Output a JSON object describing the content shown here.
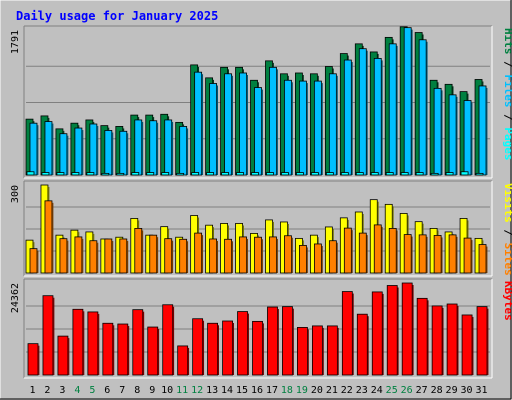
{
  "title": "Daily usage for January 2025",
  "colors": {
    "background": "#c0c0c0",
    "panel": "#c0c0c0",
    "title": "#0000ff",
    "hits": "#008040",
    "files": "#00c0ff",
    "pages": "#00ffff",
    "visits": "#ffff00",
    "sites": "#ff8000",
    "kbytes": "#ff0000",
    "weekend_day": "#008040",
    "weekday": "#000000"
  },
  "chart_data": [
    {
      "type": "bar",
      "panel": "top",
      "max_label": "1791",
      "ylim": [
        0,
        1791
      ],
      "legend": [
        "Hits",
        "Files",
        "Pages"
      ],
      "legend_seps": [
        "/",
        "/"
      ],
      "series": [
        {
          "name": "Hits",
          "values": [
            690,
            730,
            570,
            640,
            680,
            610,
            600,
            740,
            740,
            750,
            650,
            1360,
            1200,
            1330,
            1330,
            1170,
            1410,
            1250,
            1260,
            1250,
            1340,
            1500,
            1620,
            1520,
            1700,
            1830,
            1760,
            1170,
            1120,
            1030,
            1180
          ]
        },
        {
          "name": "Files",
          "values": [
            640,
            660,
            510,
            580,
            630,
            550,
            540,
            680,
            670,
            680,
            600,
            1270,
            1130,
            1250,
            1260,
            1080,
            1330,
            1170,
            1160,
            1160,
            1250,
            1420,
            1560,
            1440,
            1620,
            1820,
            1670,
            1070,
            990,
            920,
            1100
          ]
        },
        {
          "name": "Pages",
          "values": [
            40,
            30,
            30,
            30,
            30,
            20,
            20,
            30,
            30,
            30,
            20,
            30,
            30,
            30,
            30,
            30,
            30,
            30,
            30,
            30,
            30,
            30,
            30,
            30,
            30,
            30,
            30,
            20,
            30,
            40,
            20
          ]
        }
      ]
    },
    {
      "type": "bar",
      "panel": "middle",
      "max_label": "300",
      "ylim": [
        0,
        300
      ],
      "legend": [
        "Visits",
        "Sites"
      ],
      "legend_seps": [
        "/"
      ],
      "series": [
        {
          "name": "Visits",
          "values": [
            112,
            300,
            129,
            146,
            140,
            116,
            122,
            186,
            129,
            158,
            122,
            196,
            163,
            169,
            169,
            135,
            181,
            174,
            118,
            129,
            157,
            188,
            208,
            250,
            234,
            203,
            175,
            152,
            140,
            186,
            118
          ]
        },
        {
          "name": "Sites",
          "values": [
            83,
            246,
            117,
            123,
            110,
            116,
            116,
            152,
            129,
            117,
            115,
            136,
            116,
            115,
            123,
            122,
            123,
            127,
            94,
            99,
            110,
            153,
            136,
            164,
            152,
            131,
            130,
            128,
            130,
            119,
            97
          ]
        }
      ]
    },
    {
      "type": "bar",
      "panel": "bottom",
      "max_label": "24362",
      "ylim": [
        0,
        24362
      ],
      "legend": [
        "KBytes"
      ],
      "legend_seps": [],
      "series": [
        {
          "name": "KBytes",
          "values": [
            8300,
            21000,
            10300,
            17400,
            16700,
            13700,
            13500,
            17300,
            12700,
            18600,
            7700,
            14900,
            13700,
            14300,
            16800,
            14200,
            18000,
            18100,
            12600,
            13000,
            13000,
            22100,
            16100,
            22000,
            23700,
            24360,
            20300,
            18300,
            18800,
            15900,
            18100
          ]
        }
      ]
    },
    {
      "type": "axis",
      "categories": [
        "1",
        "2",
        "3",
        "4",
        "5",
        "6",
        "7",
        "8",
        "9",
        "10",
        "11",
        "12",
        "13",
        "14",
        "15",
        "16",
        "17",
        "18",
        "19",
        "20",
        "21",
        "22",
        "23",
        "24",
        "25",
        "26",
        "27",
        "28",
        "29",
        "30",
        "31"
      ],
      "weekend": [
        4,
        5,
        11,
        12,
        18,
        19,
        25,
        26
      ]
    }
  ]
}
